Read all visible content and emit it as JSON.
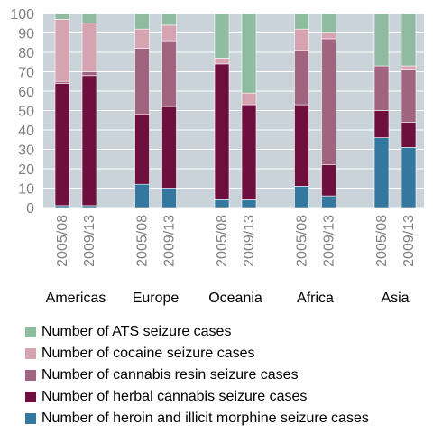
{
  "chart_data": {
    "type": "bar",
    "stacked": true,
    "ylim": [
      0,
      100
    ],
    "yticks": [
      0,
      10,
      20,
      30,
      40,
      50,
      60,
      70,
      80,
      90,
      100
    ],
    "grid": true,
    "legend_position": "bottom",
    "groups": [
      {
        "name": "Americas",
        "bars": [
          {
            "label": "2005/08",
            "values": [
              1,
              63,
              1,
              32,
              3
            ]
          },
          {
            "label": "2009/13",
            "values": [
              1,
              67,
              2,
              25,
              5
            ]
          }
        ]
      },
      {
        "name": "Europe",
        "bars": [
          {
            "label": "2005/08",
            "values": [
              12,
              36,
              34,
              10,
              8
            ]
          },
          {
            "label": "2009/13",
            "values": [
              10,
              42,
              34,
              8,
              6
            ]
          }
        ]
      },
      {
        "name": "Oceania",
        "bars": [
          {
            "label": "2005/08",
            "values": [
              4,
              70,
              0,
              3,
              23
            ]
          },
          {
            "label": "2009/13",
            "values": [
              4,
              49,
              0,
              6,
              41
            ]
          }
        ]
      },
      {
        "name": "Africa",
        "bars": [
          {
            "label": "2005/08",
            "values": [
              11,
              42,
              28,
              11,
              8
            ]
          },
          {
            "label": "2009/13",
            "values": [
              6,
              16,
              65,
              3,
              10
            ]
          }
        ]
      },
      {
        "name": "Asia",
        "bars": [
          {
            "label": "2005/08",
            "values": [
              36,
              14,
              23,
              0,
              27
            ]
          },
          {
            "label": "2009/13",
            "values": [
              31,
              13,
              27,
              2,
              27
            ]
          }
        ]
      }
    ],
    "series": [
      {
        "name": "Number of heroin and illicit morphine seizure cases",
        "color": "#34789f"
      },
      {
        "name": "Number of herbal cannabis seizure cases",
        "color": "#6e0f3e"
      },
      {
        "name": "Number of cannabis resin seizure cases",
        "color": "#a06480"
      },
      {
        "name": "Number of cocaine seizure cases",
        "color": "#d6a3b0"
      },
      {
        "name": "Number of ATS seizure cases",
        "color": "#8fbca0"
      }
    ],
    "plot_background": "#c9d3d9",
    "gridline_color": "#ffffff"
  }
}
